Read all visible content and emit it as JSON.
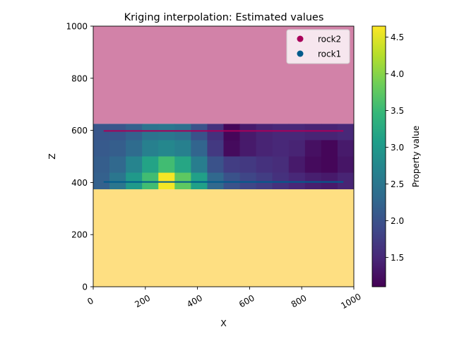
{
  "chart_data": {
    "type": "heatmap",
    "title": "Kriging interpolation: Estimated values",
    "xlabel": "X",
    "ylabel": "Z",
    "xlim": [
      0,
      1000
    ],
    "ylim": [
      0,
      1000
    ],
    "xticks": [
      0,
      200,
      400,
      600,
      800,
      1000
    ],
    "yticks": [
      0,
      200,
      400,
      600,
      800,
      1000
    ],
    "xtick_labels": [
      "0",
      "200",
      "400",
      "600",
      "800",
      "1000"
    ],
    "ytick_labels": [
      "0",
      "200",
      "400",
      "600",
      "800",
      "1000"
    ],
    "grid": false,
    "legend": {
      "placement": "top-right",
      "entries": [
        {
          "name": "rock2",
          "color": "#a8005a"
        },
        {
          "name": "rock1",
          "color": "#005b8c"
        }
      ]
    },
    "regions": [
      {
        "z_from": 625,
        "z_to": 1000,
        "color": "#d282a8"
      },
      {
        "z_from": 0,
        "z_to": 375,
        "color": "#fedf82"
      }
    ],
    "grid_cells": {
      "x_edges": [
        0,
        62.5,
        125,
        187.5,
        250,
        312.5,
        375,
        437.5,
        500,
        562.5,
        625,
        687.5,
        750,
        812.5,
        875,
        937.5,
        1000
      ],
      "z_edges": [
        375,
        437.5,
        500,
        562.5,
        625
      ],
      "values_top_to_bottom": [
        [
          2.05,
          2.05,
          2.2,
          2.45,
          2.5,
          2.4,
          2.0,
          1.6,
          1.15,
          1.35,
          1.45,
          1.5,
          1.5,
          1.45,
          1.45,
          1.5
        ],
        [
          2.1,
          2.15,
          2.35,
          2.65,
          2.75,
          2.65,
          2.25,
          1.7,
          1.2,
          1.35,
          1.45,
          1.5,
          1.45,
          1.25,
          1.15,
          1.35
        ],
        [
          2.15,
          2.3,
          2.7,
          3.15,
          3.55,
          3.2,
          2.6,
          2.0,
          1.75,
          1.7,
          1.6,
          1.55,
          1.35,
          1.2,
          1.15,
          1.3
        ],
        [
          2.2,
          2.5,
          3.0,
          3.55,
          4.6,
          3.75,
          3.1,
          2.3,
          2.0,
          1.85,
          1.75,
          1.6,
          1.5,
          1.4,
          1.35,
          1.45
        ]
      ]
    },
    "series": [
      {
        "name": "rock2",
        "color": "#a8005a",
        "x": [
          40,
          960
        ],
        "z": [
          598,
          598
        ]
      },
      {
        "name": "rock1",
        "color": "#005b8c",
        "x": [
          40,
          960
        ],
        "z": [
          402,
          402
        ]
      }
    ],
    "colorbar": {
      "label": "Property value",
      "range": [
        1.1,
        4.65
      ],
      "ticks": [
        1.5,
        2.0,
        2.5,
        3.0,
        3.5,
        4.0,
        4.5
      ],
      "tick_labels": [
        "1.5",
        "2.0",
        "2.5",
        "3.0",
        "3.5",
        "4.0",
        "4.5"
      ],
      "colormap": "viridis",
      "stops": [
        "#440154",
        "#482878",
        "#3e4989",
        "#31688e",
        "#26828e",
        "#1f9e89",
        "#35b779",
        "#6ece58",
        "#b5de2b",
        "#fde725"
      ]
    }
  }
}
